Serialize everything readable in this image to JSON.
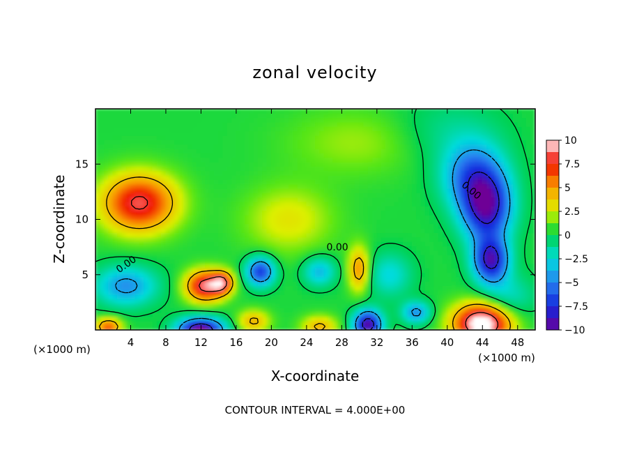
{
  "chart_data": {
    "type": "heatmap",
    "title": "zonal velocity",
    "xlabel": "X-coordinate",
    "ylabel": "Z-coordinate",
    "x_unit_label": "(×1000 m)",
    "x_unit_label_right": "(×1000 m)",
    "xlim": [
      0,
      50
    ],
    "ylim": [
      0,
      20
    ],
    "x_ticks": [
      4,
      8,
      12,
      16,
      20,
      24,
      28,
      32,
      36,
      40,
      44,
      48
    ],
    "y_ticks": [
      5,
      10,
      15
    ],
    "footer": "CONTOUR INTERVAL = 4.000E+00",
    "contour_labels": [
      "0.00",
      "0.00",
      "0.00"
    ],
    "colorbar": {
      "ticks": [
        10,
        7.5,
        5,
        2.5,
        0,
        -2.5,
        -5,
        -7.5,
        -10
      ],
      "tick_labels": [
        "10",
        "7.5",
        "5",
        "2.5",
        "0",
        "−2.5",
        "−5",
        "−7.5",
        "−10"
      ],
      "range": [
        -10,
        10
      ]
    },
    "grid": false,
    "features": [
      {
        "x": 5,
        "z": 11.5,
        "value": 8,
        "sx": 4.2,
        "sz": 2.6
      },
      {
        "x": 12.5,
        "z": 4,
        "value": 8.5,
        "sx": 2.2,
        "sz": 1.4
      },
      {
        "x": 14.5,
        "z": 4.3,
        "value": 6,
        "sx": 1.2,
        "sz": 1
      },
      {
        "x": 44.5,
        "z": 11,
        "value": -9,
        "sx": 2.8,
        "sz": 3
      },
      {
        "x": 45,
        "z": 6.3,
        "value": -9,
        "sx": 2,
        "sz": 2
      },
      {
        "x": 43,
        "z": 14,
        "value": -6,
        "sx": 3.5,
        "sz": 3
      },
      {
        "x": 44,
        "z": 0.6,
        "value": 11,
        "sx": 3.2,
        "sz": 1.8
      },
      {
        "x": 12,
        "z": 0,
        "value": -11,
        "sx": 2.6,
        "sz": 1.1
      },
      {
        "x": 31,
        "z": 0.5,
        "value": -10,
        "sx": 1.6,
        "sz": 1.3
      },
      {
        "x": 18.8,
        "z": 5.3,
        "value": -7.5,
        "sx": 1.6,
        "sz": 1.3
      },
      {
        "x": 3.5,
        "z": 4,
        "value": -5,
        "sx": 3.5,
        "sz": 1.8
      },
      {
        "x": 25.5,
        "z": 5.3,
        "value": -4,
        "sx": 1.8,
        "sz": 1.3
      },
      {
        "x": 36.5,
        "z": 1.6,
        "value": -5,
        "sx": 1.6,
        "sz": 1
      },
      {
        "x": 33.5,
        "z": 5,
        "value": -3,
        "sx": 2.5,
        "sz": 2
      },
      {
        "x": 30,
        "z": 5.5,
        "value": 5,
        "sx": 1.2,
        "sz": 2
      },
      {
        "x": 25.5,
        "z": 0.3,
        "value": 4,
        "sx": 2,
        "sz": 1
      },
      {
        "x": 1.5,
        "z": 0.3,
        "value": 6,
        "sx": 1.5,
        "sz": 0.8
      },
      {
        "x": 18,
        "z": 0.8,
        "value": 4,
        "sx": 1.8,
        "sz": 1
      },
      {
        "x": 47,
        "z": 3,
        "value": -2.5,
        "sx": 3,
        "sz": 2
      },
      {
        "x": 22,
        "z": 10,
        "value": 2.5,
        "sx": 5,
        "sz": 3
      },
      {
        "x": 30,
        "z": 17,
        "value": 1.5,
        "sx": 8,
        "sz": 3
      },
      {
        "x": 40,
        "z": 18,
        "value": -1.5,
        "sx": 6,
        "sz": 3
      }
    ],
    "background_value": 0.4
  }
}
